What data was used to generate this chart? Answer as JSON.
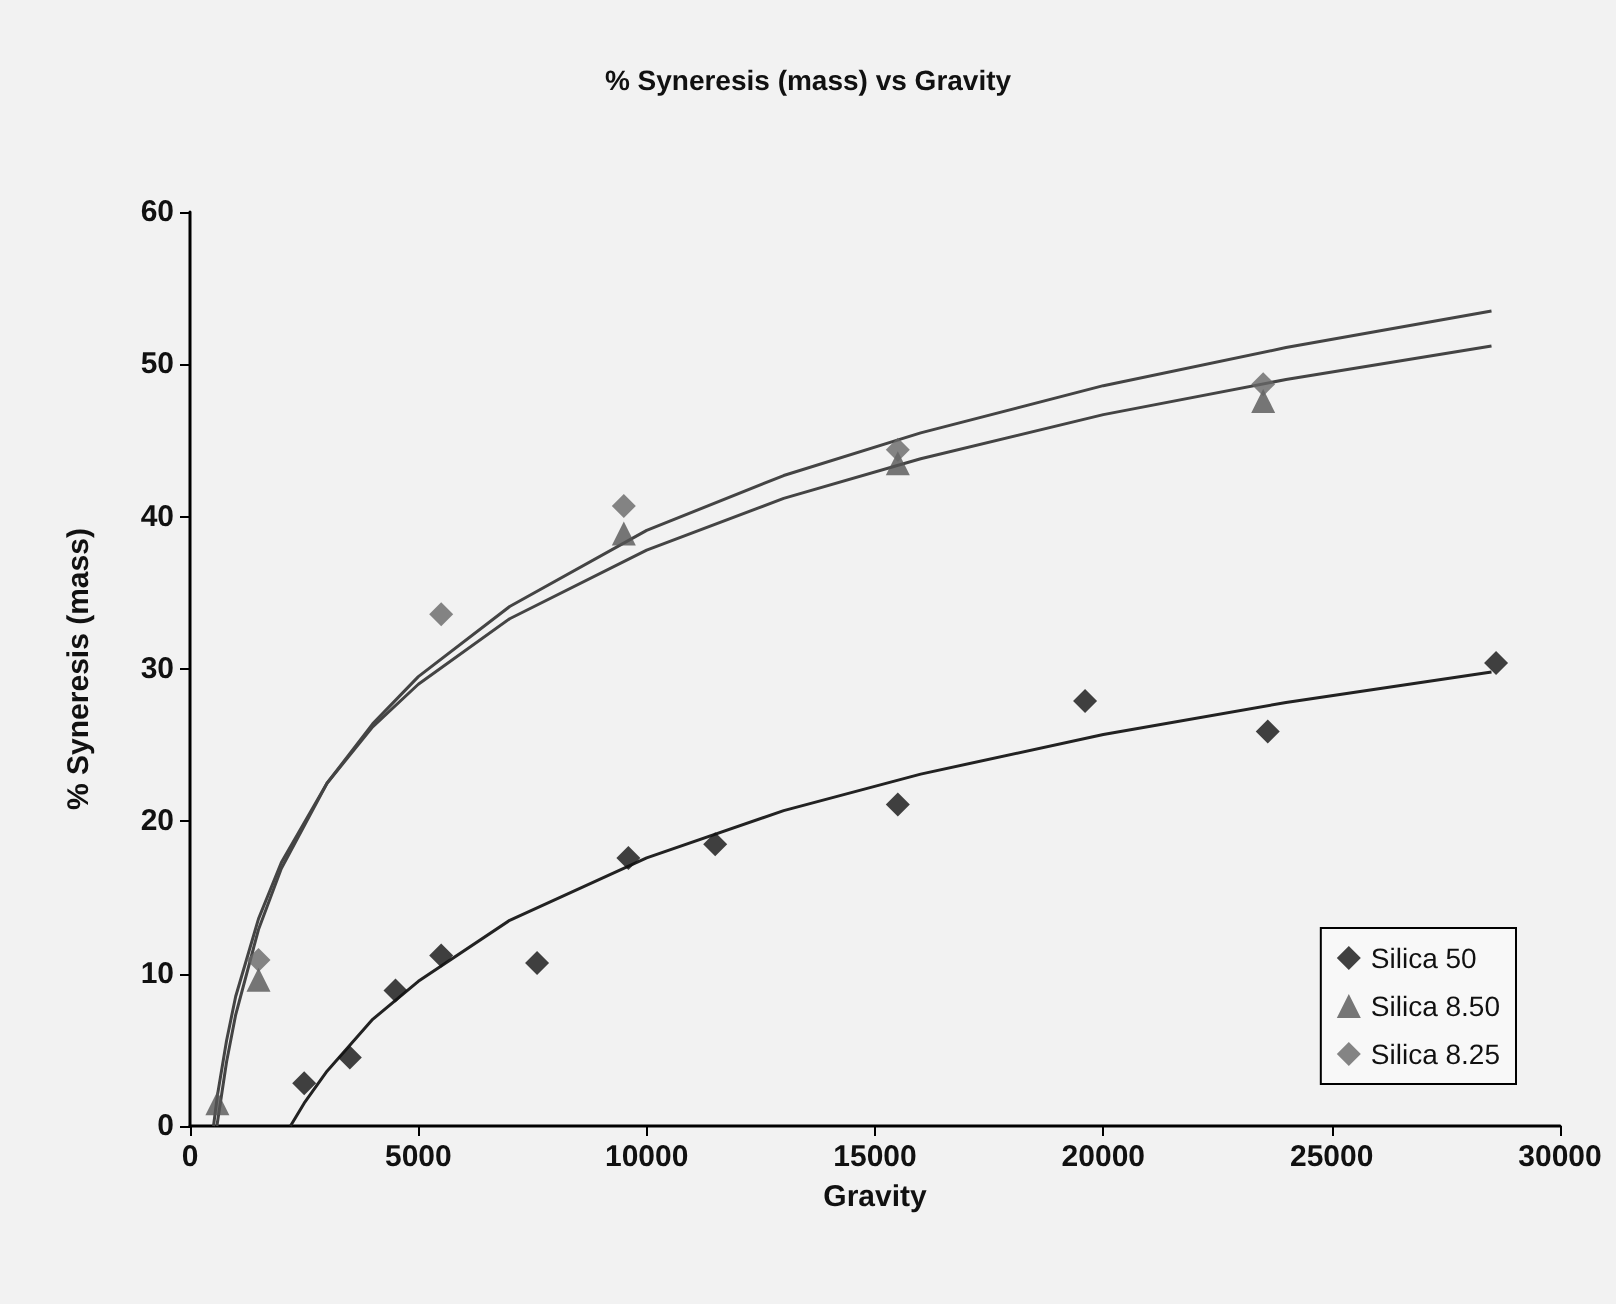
{
  "chart_data": {
    "type": "scatter",
    "title": "% Syneresis (mass) vs Gravity",
    "xlabel": "Gravity",
    "ylabel": "% Syneresis (mass)",
    "xlim": [
      0,
      30000
    ],
    "xticks": [
      0,
      5000,
      10000,
      15000,
      20000,
      25000,
      30000
    ],
    "ylim": [
      0,
      60
    ],
    "yticks": [
      0,
      10,
      20,
      30,
      40,
      50,
      60
    ],
    "grid": false,
    "legend": "bottom right",
    "series": [
      {
        "name": "Silica 50",
        "color": "#111111",
        "marker": "diamond",
        "x": [
          2500,
          3500,
          4500,
          5500,
          7600,
          9600,
          11500,
          15500,
          19600,
          23600,
          28600
        ],
        "values": [
          2.8,
          4.5,
          8.9,
          11.2,
          10.7,
          17.6,
          18.5,
          21.1,
          27.9,
          25.9,
          30.4
        ]
      },
      {
        "name": "Silica 8.50",
        "color": "#555555",
        "marker": "triangle",
        "x": [
          600,
          1500,
          9500,
          15500,
          23500
        ],
        "values": [
          1.5,
          9.6,
          38.9,
          43.5,
          47.6
        ]
      },
      {
        "name": "Silica 8.25",
        "color": "#666666",
        "marker": "diamond",
        "x": [
          1500,
          5500,
          9500,
          15500,
          23500
        ],
        "values": [
          10.9,
          33.6,
          40.7,
          44.4,
          48.7
        ]
      },
      {
        "type": "line",
        "color": "#222222",
        "marker": "none",
        "line_style": "solid",
        "x": [
          2200,
          2500,
          3000,
          4000,
          5000,
          7000,
          10000,
          13000,
          16000,
          20000,
          24000,
          28500
        ],
        "values": [
          0,
          1.5,
          3.6,
          7.0,
          9.5,
          13.5,
          17.6,
          20.7,
          23.1,
          25.7,
          27.8,
          29.8
        ]
      },
      {
        "type": "line",
        "color": "#444444",
        "marker": "none",
        "line_style": "solid",
        "x": [
          515,
          600,
          800,
          1000,
          1500,
          2000,
          3000,
          4000,
          5000,
          7000,
          10000,
          13000,
          16000,
          20000,
          24000,
          28500
        ],
        "values": [
          0,
          2.0,
          5.6,
          8.5,
          13.6,
          17.3,
          22.5,
          26.2,
          29.0,
          33.3,
          37.8,
          41.2,
          43.8,
          46.7,
          49.0,
          51.2
        ]
      },
      {
        "type": "line",
        "color": "#444444",
        "marker": "none",
        "line_style": "solid",
        "x": [
          589,
          800,
          1000,
          1500,
          2000,
          3000,
          4000,
          5000,
          7000,
          10000,
          13000,
          16000,
          20000,
          24000,
          28500
        ],
        "values": [
          0,
          4.2,
          7.3,
          12.9,
          16.9,
          22.5,
          26.4,
          29.5,
          34.1,
          39.1,
          42.7,
          45.5,
          48.6,
          51.1,
          53.5
        ]
      }
    ]
  }
}
